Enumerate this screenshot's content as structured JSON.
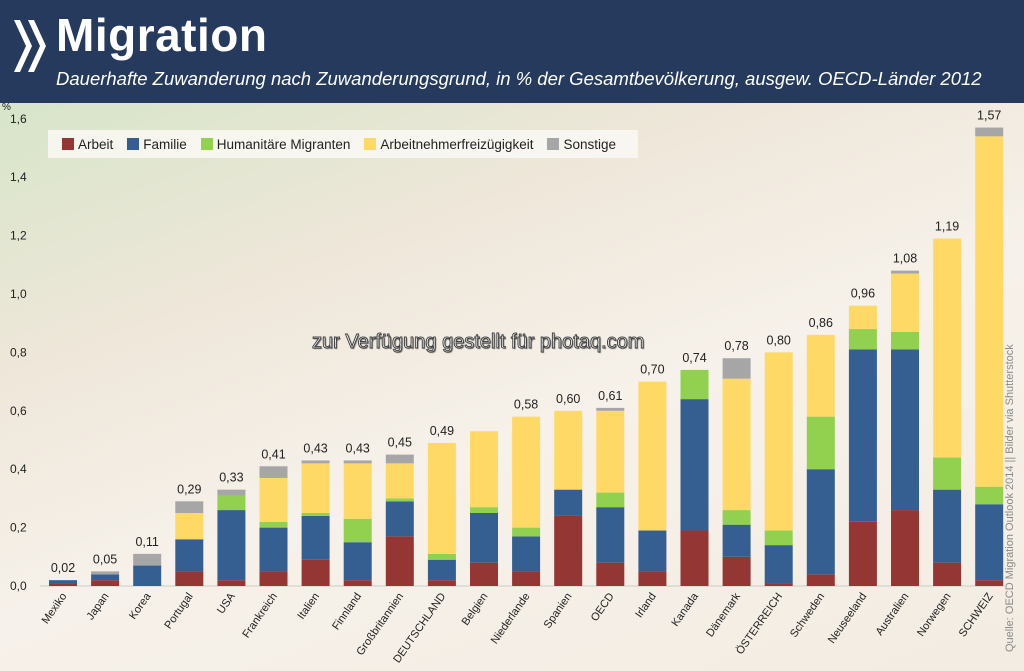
{
  "header": {
    "title": "Migration",
    "subtitle": "Dauerhafte Zuwanderung nach Zuwanderungsgrund, in % der Gesamtbevölkerung, ausgew. OECD-Länder 2012",
    "background": "#253a5c"
  },
  "watermark": "zur Verfügung gestellt für photaq.com",
  "source": "Quelle: OECD Migration Outlook 2014 || Bilder via Shutterstock",
  "chart_data": {
    "type": "bar",
    "stacked": true,
    "title": "Migration",
    "subtitle": "Dauerhafte Zuwanderung nach Zuwanderungsgrund, in % der Gesamtbevölkerung, ausgew. OECD-Länder 2012",
    "ylabel": "%",
    "ylim": [
      0,
      1.6
    ],
    "yticks": [
      "0,0",
      "0,2",
      "0,4",
      "0,6",
      "0,8",
      "1,0",
      "1,2",
      "1,4",
      "1,6"
    ],
    "grid": false,
    "legend": "top-left",
    "categories": [
      "Mexiko",
      "Japan",
      "Korea",
      "Portugal",
      "USA",
      "Frankreich",
      "Italien",
      "Finnland",
      "Großbritannien",
      "DEUTSCHLAND",
      "Belgien",
      "Niederlande",
      "Spanien",
      "OECD",
      "Irland",
      "Kanada",
      "Dänemark",
      "ÖSTERREICH",
      "Schweden",
      "Neuseeland",
      "Australien",
      "Norwegen",
      "SCHWEIZ"
    ],
    "totals_labels": [
      "0,02",
      "0,05",
      "0,11",
      "0,29",
      "0,33",
      "0,41",
      "0,43",
      "0,43",
      "0,45",
      "0,49",
      "",
      "0,58",
      "0,60",
      "0,61",
      "0,70",
      "0,74",
      "0,78",
      "0,80",
      "0,86",
      "0,96",
      "1,08",
      "1,19",
      "1,57"
    ],
    "series": [
      {
        "name": "Arbeit",
        "color": "#943634",
        "values": [
          0.01,
          0.02,
          0.0,
          0.05,
          0.02,
          0.05,
          0.09,
          0.02,
          0.17,
          0.02,
          0.08,
          0.05,
          0.24,
          0.08,
          0.05,
          0.19,
          0.1,
          0.01,
          0.04,
          0.22,
          0.26,
          0.08,
          0.02
        ]
      },
      {
        "name": "Familie",
        "color": "#355f91",
        "values": [
          0.01,
          0.02,
          0.07,
          0.11,
          0.24,
          0.15,
          0.15,
          0.13,
          0.12,
          0.07,
          0.17,
          0.12,
          0.09,
          0.19,
          0.14,
          0.45,
          0.11,
          0.13,
          0.36,
          0.59,
          0.55,
          0.25,
          0.26
        ]
      },
      {
        "name": "Humanitäre Migranten",
        "color": "#92d050",
        "values": [
          0,
          0,
          0,
          0,
          0.05,
          0.02,
          0.01,
          0.08,
          0.01,
          0.02,
          0.02,
          0.03,
          0,
          0.05,
          0,
          0.1,
          0.05,
          0.05,
          0.18,
          0.07,
          0.06,
          0.11,
          0.06
        ]
      },
      {
        "name": "Arbeitnehmerfreizügigkeit",
        "color": "#ffd966",
        "values": [
          0,
          0,
          0,
          0.09,
          0,
          0.15,
          0.17,
          0.19,
          0.12,
          0.38,
          0.26,
          0.38,
          0.27,
          0.28,
          0.51,
          0,
          0.45,
          0.61,
          0.28,
          0.08,
          0.2,
          0.75,
          1.2
        ]
      },
      {
        "name": "Sonstige",
        "color": "#a6a6a6",
        "values": [
          0,
          0.01,
          0.04,
          0.04,
          0.02,
          0.04,
          0.01,
          0.01,
          0.03,
          0,
          0,
          0,
          0,
          0.01,
          0,
          0,
          0.07,
          0,
          0,
          0,
          0.01,
          0,
          0.03
        ]
      }
    ]
  }
}
